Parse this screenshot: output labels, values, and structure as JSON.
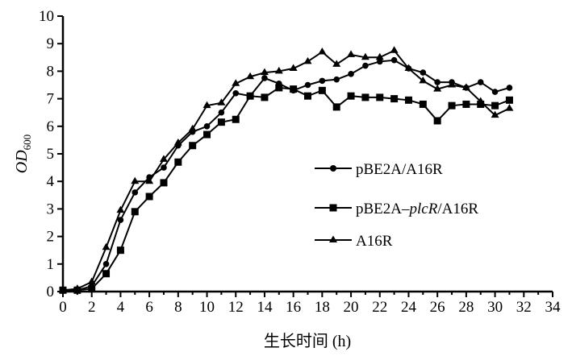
{
  "chart_data": {
    "type": "line",
    "xlabel": "生长时间 (h)",
    "ylabel_main": "OD",
    "ylabel_sub": "600",
    "xlim": [
      0,
      34
    ],
    "ylim": [
      0,
      10
    ],
    "xticks": [
      0,
      2,
      4,
      6,
      8,
      10,
      12,
      14,
      16,
      18,
      20,
      22,
      24,
      26,
      28,
      30,
      32,
      34
    ],
    "yticks": [
      0,
      1,
      2,
      3,
      4,
      5,
      6,
      7,
      8,
      9,
      10
    ],
    "grid": false,
    "legend_position": "right",
    "x": [
      0,
      1,
      2,
      3,
      4,
      5,
      6,
      7,
      8,
      9,
      10,
      11,
      12,
      13,
      14,
      15,
      16,
      17,
      18,
      19,
      20,
      21,
      22,
      23,
      24,
      25,
      26,
      27,
      28,
      29,
      30,
      31
    ],
    "series": [
      {
        "name": "pBE2A/A16R",
        "marker": "circle",
        "values": [
          0.05,
          0.05,
          0.2,
          1.0,
          2.6,
          3.6,
          4.15,
          4.5,
          5.3,
          5.8,
          6.0,
          6.5,
          7.2,
          7.1,
          7.75,
          7.55,
          7.3,
          7.5,
          7.65,
          7.7,
          7.9,
          8.2,
          8.35,
          8.4,
          8.1,
          7.95,
          7.6,
          7.6,
          7.4,
          7.6,
          7.25,
          7.4
        ]
      },
      {
        "name_parts": [
          "pBE2A–",
          "plcR",
          "/A16R"
        ],
        "name": "pBE2A–plcR/A16R",
        "marker": "square",
        "values": [
          0.05,
          0.05,
          0.1,
          0.65,
          1.5,
          2.9,
          3.45,
          3.95,
          4.7,
          5.3,
          5.7,
          6.15,
          6.25,
          7.1,
          7.05,
          7.4,
          7.35,
          7.1,
          7.3,
          6.7,
          7.1,
          7.05,
          7.05,
          7.0,
          6.95,
          6.8,
          6.2,
          6.75,
          6.8,
          6.8,
          6.75,
          6.95
        ]
      },
      {
        "name": "A16R",
        "marker": "triangle",
        "values": [
          0.05,
          0.1,
          0.35,
          1.6,
          2.95,
          4.0,
          4.0,
          4.8,
          5.4,
          5.9,
          6.75,
          6.85,
          7.55,
          7.8,
          7.95,
          8.0,
          8.1,
          8.35,
          8.7,
          8.25,
          8.6,
          8.5,
          8.5,
          8.75,
          8.1,
          7.65,
          7.35,
          7.5,
          7.4,
          6.9,
          6.4,
          6.65
        ]
      }
    ],
    "color": "#000000"
  }
}
